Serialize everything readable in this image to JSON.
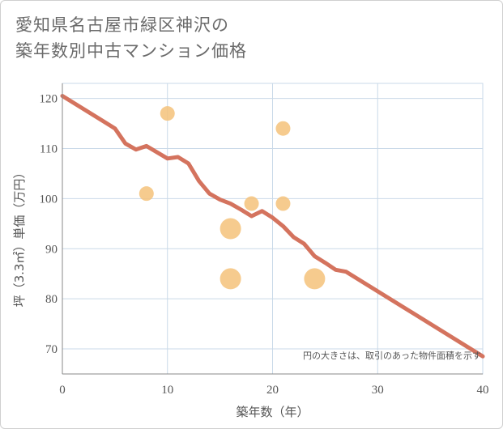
{
  "title_lines": [
    "愛知県名古屋市緑区神沢の",
    "築年数別中古マンション価格"
  ],
  "chart_data": {
    "type": "scatter",
    "xlabel": "築年数（年）",
    "ylabel": "坪（3.3㎡）単価（万円）",
    "xlim": [
      0,
      40
    ],
    "ylim": [
      65,
      123
    ],
    "xticks": [
      0,
      10,
      20,
      30,
      40
    ],
    "yticks": [
      70,
      80,
      90,
      100,
      110,
      120
    ],
    "grid": true,
    "note": "円の大きさは、取引のあった物件面積を示す",
    "points": [
      {
        "x": 8,
        "y": 101,
        "size": 1
      },
      {
        "x": 10,
        "y": 117,
        "size": 1
      },
      {
        "x": 16,
        "y": 94,
        "size": 2
      },
      {
        "x": 16,
        "y": 84,
        "size": 2
      },
      {
        "x": 18,
        "y": 99,
        "size": 1
      },
      {
        "x": 21,
        "y": 114,
        "size": 1
      },
      {
        "x": 21,
        "y": 99,
        "size": 1
      },
      {
        "x": 24,
        "y": 84,
        "size": 2
      }
    ],
    "trend_line": {
      "x": [
        0,
        5,
        6,
        7,
        8,
        10,
        11,
        12,
        13,
        14,
        15,
        16,
        17,
        18,
        19,
        20,
        21,
        22,
        23,
        24,
        25,
        26,
        27,
        40
      ],
      "y": [
        120.5,
        114,
        111,
        109.8,
        110.5,
        108,
        108.3,
        107,
        103.5,
        101,
        99.8,
        99,
        97.8,
        96.5,
        97.5,
        96.2,
        94.5,
        92.3,
        91,
        88.5,
        87.2,
        85.8,
        85.4,
        68.5
      ]
    },
    "colors": {
      "points": "#f5c27a",
      "trend_line": "#d4735e",
      "grid": "#c9d9e8",
      "axis": "#888888"
    }
  }
}
